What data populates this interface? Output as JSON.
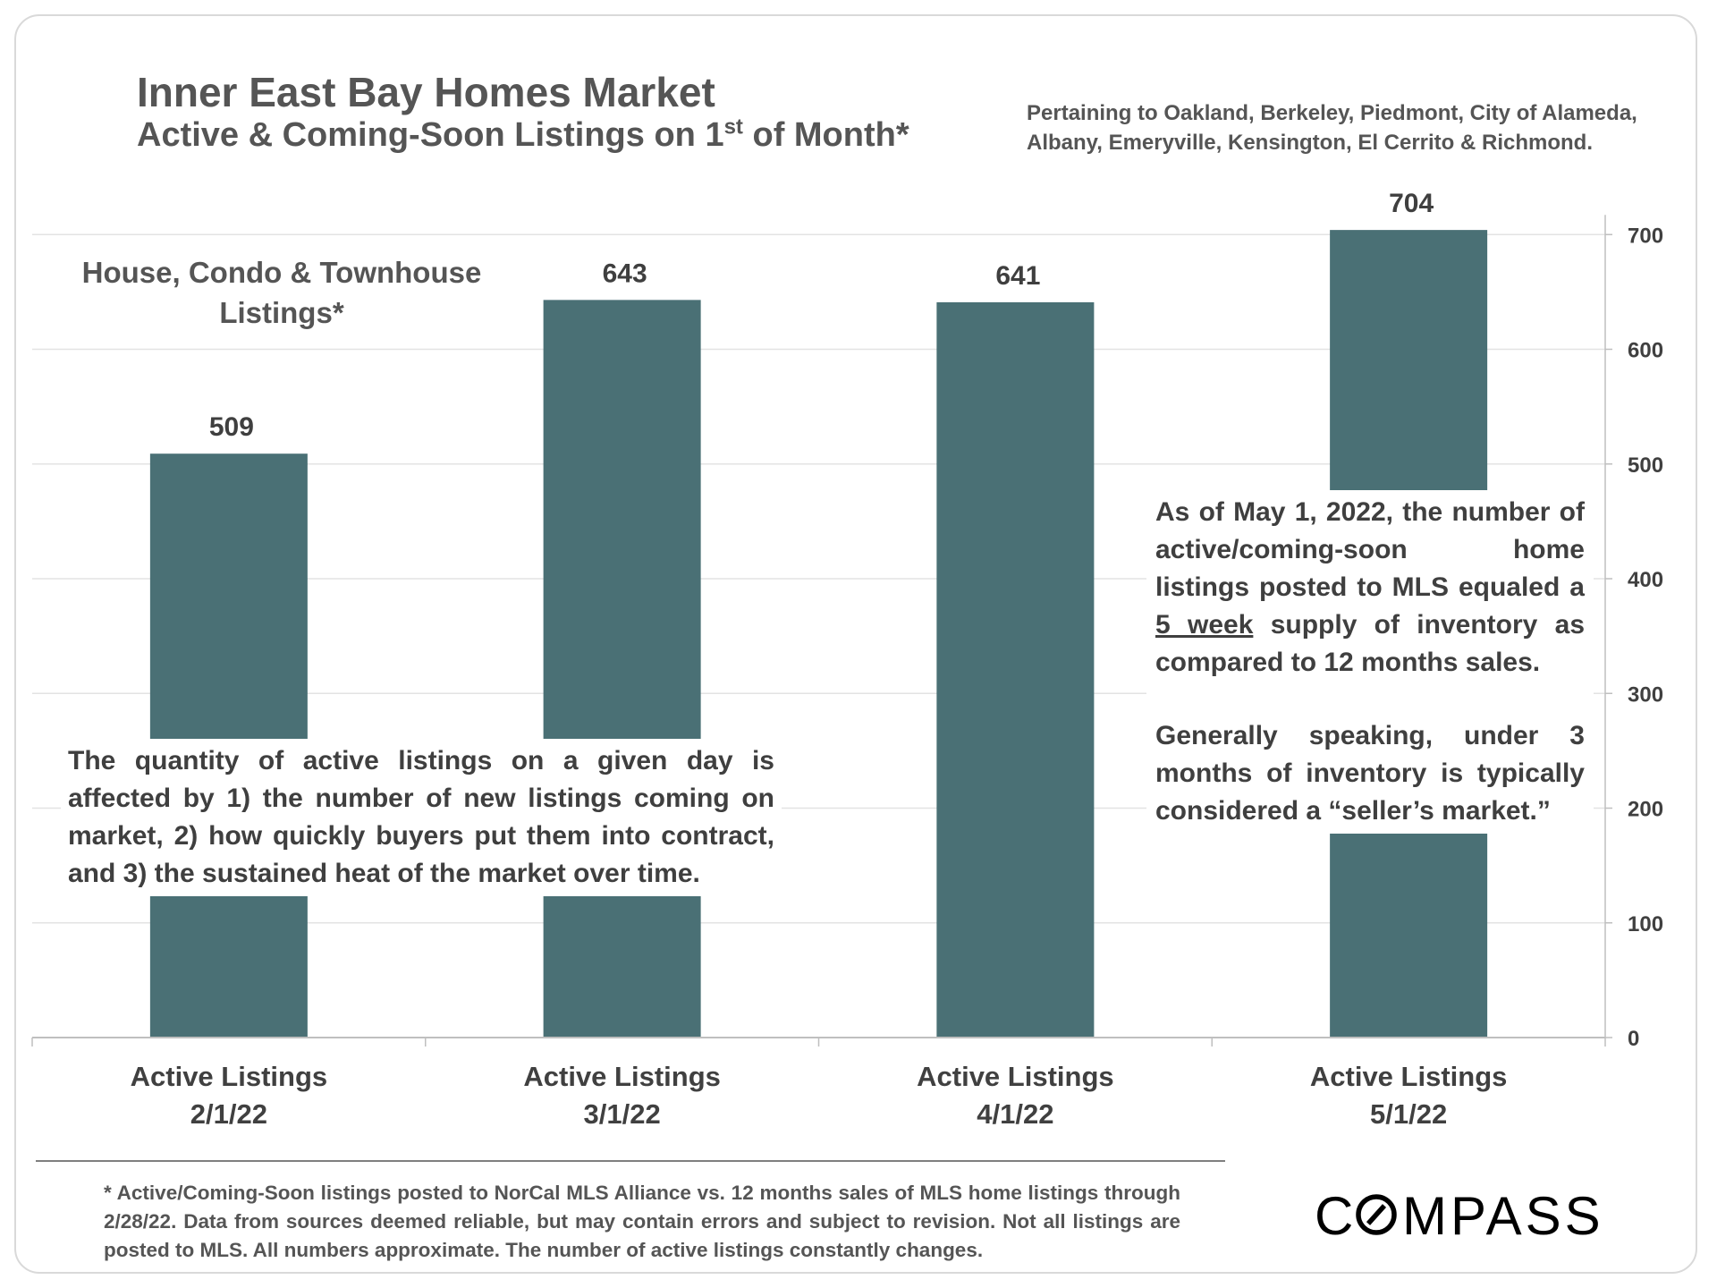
{
  "header": {
    "title": "Inner East Bay Homes Market",
    "subtitle_pre": "Active & Coming-Soon Listings on 1",
    "subtitle_sup": "st",
    "subtitle_post": " of Month*",
    "coverage": "Pertaining to Oakland, Berkeley, Piedmont, City of Alameda, Albany, Emeryville, Kensington, El Cerrito & Richmond."
  },
  "series_label": "House, Condo & Townhouse Listings*",
  "chart_data": {
    "type": "bar",
    "categories": [
      [
        "Active Listings",
        "2/1/22"
      ],
      [
        "Active Listings",
        "3/1/22"
      ],
      [
        "Active Listings",
        "4/1/22"
      ],
      [
        "Active Listings",
        "5/1/22"
      ]
    ],
    "values": [
      509,
      643,
      641,
      704
    ],
    "data_labels": [
      "509",
      "643",
      "641",
      "704"
    ],
    "y_axis_position": "right",
    "ylim": [
      0,
      700
    ],
    "yticks": [
      0,
      100,
      200,
      300,
      400,
      500,
      600,
      700
    ],
    "grid": true,
    "bar_color": "#4a7075"
  },
  "notes": {
    "left": "The quantity of active listings on a given day is affected by 1) the number of new listings coming on market, 2) how quickly buyers put them into contract, and 3) the sustained heat of the market over time.",
    "right_p1_pre": "As of May 1, 2022, the number of active/coming-soon home listings posted to MLS equaled a ",
    "right_p1_underline": "5 week",
    "right_p1_post": " supply of inventory as compared to 12 months sales.",
    "right_p2": "Generally speaking, under 3 months of inventory is typically considered a “seller’s market.”"
  },
  "footnote": "* Active/Coming-Soon listings posted to NorCal MLS Alliance vs. 12 months sales of MLS home listings through 2/28/22. Data from sources deemed reliable, but may contain errors and subject to revision. Not all listings are posted to MLS. All numbers approximate. The number of active listings constantly changes.",
  "logo": {
    "pre": "C",
    "post": "MPASS"
  }
}
